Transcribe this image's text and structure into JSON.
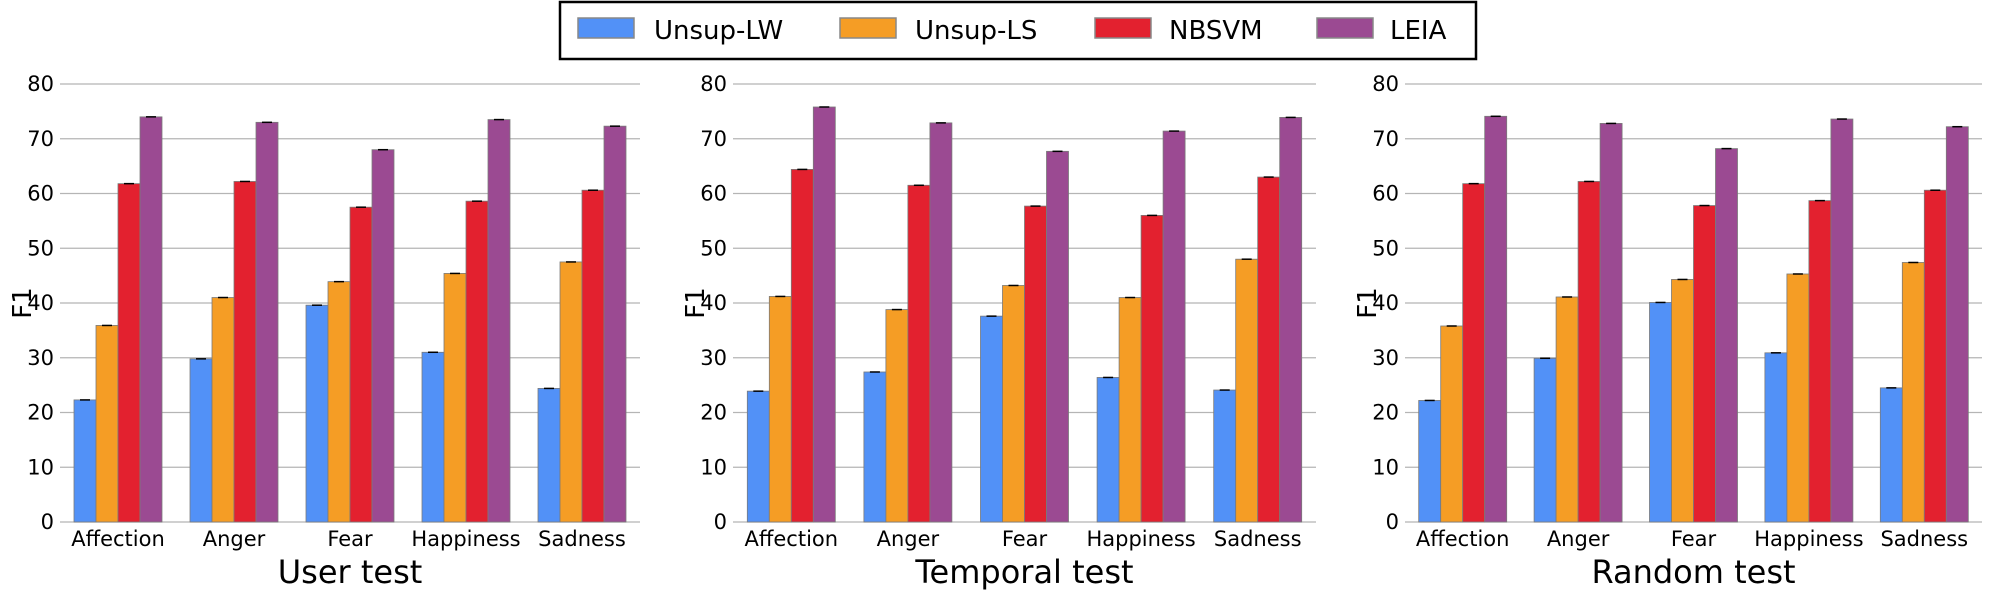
{
  "colors": {
    "Unsup-LW": "#5291f7",
    "Unsup-LS": "#f59d25",
    "NBSVM": "#e3212f",
    "LEIA": "#9b4a92",
    "grid": "#b5b5b5"
  },
  "legend": {
    "placement": "top-center",
    "entries": [
      "Unsup-LW",
      "Unsup-LS",
      "NBSVM",
      "LEIA"
    ]
  },
  "chart_data": [
    {
      "type": "bar",
      "xlabel": "User test",
      "ylabel": "F1",
      "ylim": [
        0,
        80
      ],
      "yticks": [
        0,
        10,
        20,
        30,
        40,
        50,
        60,
        70,
        80
      ],
      "grid": true,
      "categories": [
        "Affection",
        "Anger",
        "Fear",
        "Happiness",
        "Sadness"
      ],
      "series": [
        {
          "name": "Unsup-LW",
          "values": [
            22.3,
            29.8,
            39.6,
            31.0,
            24.4
          ]
        },
        {
          "name": "Unsup-LS",
          "values": [
            35.9,
            41.0,
            43.9,
            45.4,
            47.5
          ]
        },
        {
          "name": "NBSVM",
          "values": [
            61.8,
            62.2,
            57.5,
            58.6,
            60.6
          ]
        },
        {
          "name": "LEIA",
          "values": [
            74.0,
            73.0,
            68.0,
            73.5,
            72.3
          ]
        }
      ]
    },
    {
      "type": "bar",
      "xlabel": "Temporal test",
      "ylabel": "F1",
      "ylim": [
        0,
        80
      ],
      "yticks": [
        0,
        10,
        20,
        30,
        40,
        50,
        60,
        70,
        80
      ],
      "grid": true,
      "categories": [
        "Affection",
        "Anger",
        "Fear",
        "Happiness",
        "Sadness"
      ],
      "series": [
        {
          "name": "Unsup-LW",
          "values": [
            23.9,
            27.4,
            37.6,
            26.4,
            24.1
          ]
        },
        {
          "name": "Unsup-LS",
          "values": [
            41.2,
            38.8,
            43.2,
            41.0,
            48.0
          ]
        },
        {
          "name": "NBSVM",
          "values": [
            64.4,
            61.5,
            57.7,
            56.0,
            63.0
          ]
        },
        {
          "name": "LEIA",
          "values": [
            75.8,
            72.9,
            67.7,
            71.4,
            73.9
          ]
        }
      ]
    },
    {
      "type": "bar",
      "xlabel": "Random test",
      "ylabel": "F1",
      "ylim": [
        0,
        80
      ],
      "yticks": [
        0,
        10,
        20,
        30,
        40,
        50,
        60,
        70,
        80
      ],
      "grid": true,
      "categories": [
        "Affection",
        "Anger",
        "Fear",
        "Happiness",
        "Sadness"
      ],
      "series": [
        {
          "name": "Unsup-LW",
          "values": [
            22.2,
            29.9,
            40.1,
            30.9,
            24.5
          ]
        },
        {
          "name": "Unsup-LS",
          "values": [
            35.8,
            41.1,
            44.3,
            45.3,
            47.4
          ]
        },
        {
          "name": "NBSVM",
          "values": [
            61.8,
            62.2,
            57.8,
            58.7,
            60.6
          ]
        },
        {
          "name": "LEIA",
          "values": [
            74.1,
            72.8,
            68.2,
            73.6,
            72.2
          ]
        }
      ]
    }
  ]
}
